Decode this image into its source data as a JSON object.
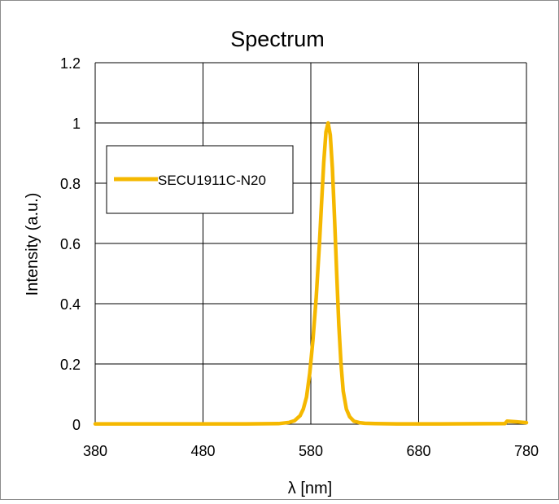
{
  "chart_data": {
    "type": "line",
    "title": "Spectrum",
    "xlabel": "λ [nm]",
    "ylabel": "Intensity (a.u.)",
    "xlim": [
      380,
      780
    ],
    "ylim": [
      0,
      1.2
    ],
    "x_ticks": [
      380,
      480,
      580,
      680,
      780
    ],
    "x_tick_labels": [
      "380",
      "480",
      "580",
      "680",
      "780"
    ],
    "y_ticks": [
      0,
      0.2,
      0.4,
      0.6,
      0.8,
      1,
      1.2
    ],
    "y_tick_labels": [
      "0",
      "0.2",
      "0.4",
      "0.6",
      "0.8",
      "1",
      "1.2"
    ],
    "grid": true,
    "legend_placement": "upper-left",
    "series": [
      {
        "name": "SECU1911C-N20",
        "color": "#f5b800",
        "x": [
          380,
          520,
          550,
          560,
          565,
          570,
          573,
          576,
          579,
          582,
          585,
          588,
          590,
          592,
          594,
          596,
          598,
          600,
          602,
          604,
          606,
          608,
          610,
          613,
          616,
          620,
          625,
          630,
          640,
          660,
          700,
          760,
          762,
          770,
          780
        ],
        "y": [
          0.001,
          0.001,
          0.002,
          0.006,
          0.012,
          0.028,
          0.05,
          0.09,
          0.17,
          0.28,
          0.42,
          0.6,
          0.74,
          0.87,
          0.97,
          1.0,
          0.96,
          0.85,
          0.68,
          0.5,
          0.33,
          0.2,
          0.11,
          0.05,
          0.025,
          0.01,
          0.005,
          0.003,
          0.002,
          0.001,
          0.001,
          0.002,
          0.01,
          0.008,
          0.005
        ]
      }
    ]
  }
}
